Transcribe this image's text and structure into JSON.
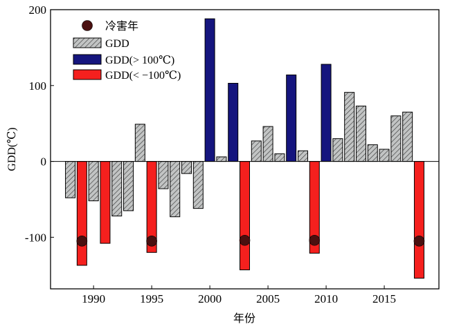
{
  "chart_data": {
    "type": "bar",
    "title": "",
    "xlabel": "年份",
    "ylabel": "GDD(℃)",
    "xlim": [
      1986.3,
      2019.7
    ],
    "ylim": [
      -168,
      200
    ],
    "x_ticks": [
      1990,
      1995,
      2000,
      2005,
      2010,
      2015
    ],
    "x_tick_labels": [
      "1990",
      "1995",
      "2000",
      "2005",
      "2010",
      "2015"
    ],
    "y_ticks": [
      -100,
      0,
      100,
      200
    ],
    "y_tick_labels": [
      "-100",
      "0",
      "100",
      "200"
    ],
    "grid": false,
    "legend_position": "top-left",
    "legend": [
      {
        "key": "cold",
        "label": "冷害年"
      },
      {
        "key": "gdd",
        "label": "GDD"
      },
      {
        "key": "high",
        "label": "GDD(> 100℃)"
      },
      {
        "key": "low",
        "label": "GDD(< −100℃)"
      }
    ],
    "colors": {
      "gdd_fill": "#c2c4c4",
      "gdd_hatch": "#3a3a3a",
      "high": "#15157e",
      "low": "#f5201e",
      "cold_marker": "#4a1010"
    },
    "series": [
      {
        "key": "gdd",
        "name": "GDD",
        "points": [
          {
            "x": 1988,
            "y": -48
          },
          {
            "x": 1990,
            "y": -52
          },
          {
            "x": 1992,
            "y": -72
          },
          {
            "x": 1993,
            "y": -65
          },
          {
            "x": 1994,
            "y": 49
          },
          {
            "x": 1996,
            "y": -36
          },
          {
            "x": 1997,
            "y": -73
          },
          {
            "x": 1998,
            "y": -16
          },
          {
            "x": 1999,
            "y": -62
          },
          {
            "x": 2001,
            "y": 6
          },
          {
            "x": 2004,
            "y": 27
          },
          {
            "x": 2005,
            "y": 46
          },
          {
            "x": 2006,
            "y": 10
          },
          {
            "x": 2008,
            "y": 14
          },
          {
            "x": 2011,
            "y": 30
          },
          {
            "x": 2012,
            "y": 91
          },
          {
            "x": 2013,
            "y": 73
          },
          {
            "x": 2014,
            "y": 22
          },
          {
            "x": 2015,
            "y": 16
          },
          {
            "x": 2016,
            "y": 60
          },
          {
            "x": 2017,
            "y": 65
          }
        ]
      },
      {
        "key": "high",
        "name": "GDD(> 100℃)",
        "points": [
          {
            "x": 2000,
            "y": 188
          },
          {
            "x": 2002,
            "y": 103
          },
          {
            "x": 2007,
            "y": 114
          },
          {
            "x": 2010,
            "y": 128
          }
        ]
      },
      {
        "key": "low",
        "name": "GDD(< −100℃)",
        "points": [
          {
            "x": 1989,
            "y": -137
          },
          {
            "x": 1991,
            "y": -108
          },
          {
            "x": 1995,
            "y": -120
          },
          {
            "x": 2003,
            "y": -143
          },
          {
            "x": 2009,
            "y": -121
          },
          {
            "x": 2018,
            "y": -154
          }
        ]
      }
    ],
    "cold_years": {
      "name": "冷害年",
      "points": [
        {
          "x": 1989,
          "y": -105
        },
        {
          "x": 1995,
          "y": -105
        },
        {
          "x": 2003,
          "y": -104
        },
        {
          "x": 2009,
          "y": -104
        },
        {
          "x": 2018,
          "y": -105
        }
      ]
    }
  }
}
